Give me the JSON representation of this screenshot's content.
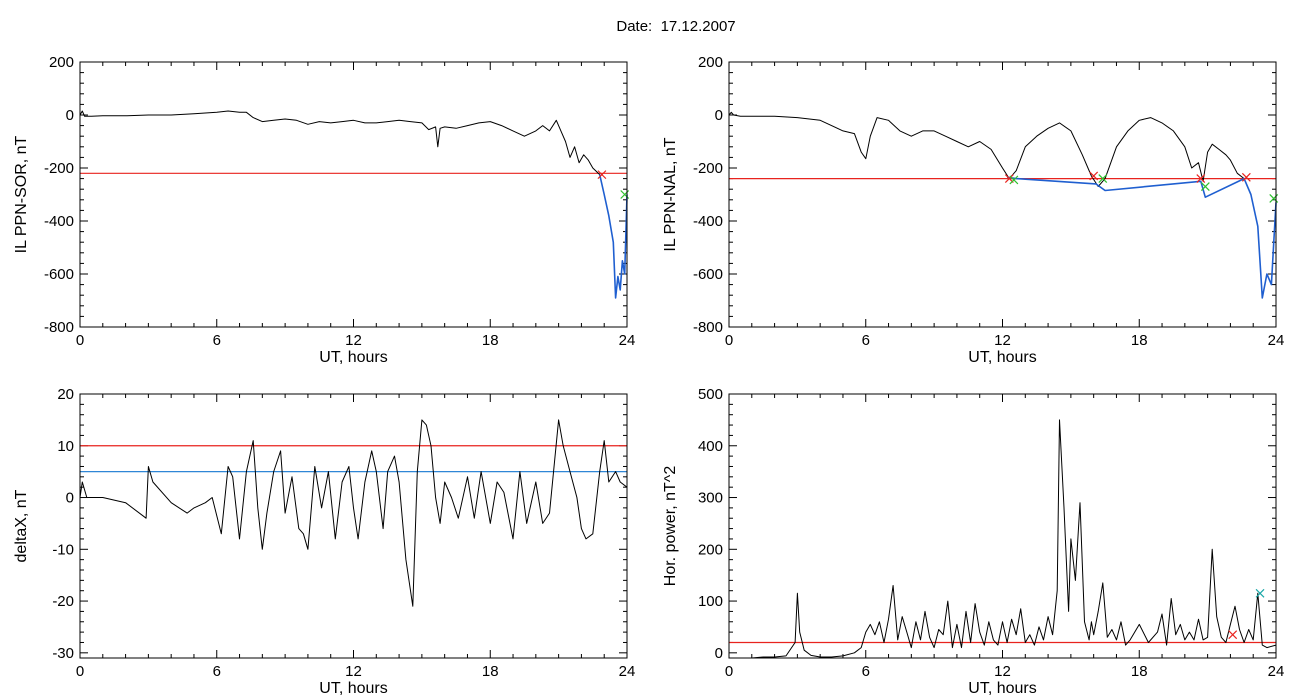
{
  "header": {
    "date_label": "Date:",
    "date_value": "17.12.2007"
  },
  "colors": {
    "trace": "#000000",
    "threshold_red": "#e8231e",
    "threshold_blue": "#2f86d6",
    "marker_red": "#e8231e",
    "marker_green": "#2fc12f",
    "marker_cyan": "#1aa7a7",
    "highlight_blue": "#1f5fd0"
  },
  "chart_data": [
    {
      "type": "line",
      "title": "",
      "xlabel": "UT, hours",
      "ylabel": "IL PPN-SOR, nT",
      "xlim": [
        0,
        24
      ],
      "ylim": [
        -800,
        200
      ],
      "xticks": [
        "0",
        "6",
        "12",
        "18",
        "24"
      ],
      "yticks": [
        "200",
        "0",
        "-200",
        "-400",
        "-600",
        "-800"
      ],
      "thresholds": [
        {
          "y": -220,
          "color": "red"
        }
      ],
      "series": [
        {
          "color": "black",
          "x": [
            0,
            0.1,
            0.2,
            0.5,
            1,
            2,
            3,
            4,
            5,
            6,
            6.5,
            7,
            7.3,
            7.6,
            8,
            8.5,
            9,
            9.5,
            10,
            10.5,
            11,
            11.5,
            12,
            12.5,
            13,
            13.5,
            14,
            14.5,
            15,
            15.3,
            15.6,
            15.7,
            15.8,
            16,
            16.5,
            17,
            17.5,
            18,
            18.5,
            19,
            19.5,
            20,
            20.3,
            20.6,
            20.9,
            21.1,
            21.3,
            21.5,
            21.7,
            21.9,
            22.1,
            22.3,
            22.5,
            22.8
          ],
          "y": [
            0,
            15,
            -5,
            -5,
            -3,
            -3,
            0,
            0,
            5,
            10,
            15,
            10,
            10,
            -10,
            -25,
            -20,
            -15,
            -20,
            -35,
            -25,
            -30,
            -25,
            -20,
            -30,
            -30,
            -25,
            -20,
            -25,
            -30,
            -55,
            -45,
            -120,
            -50,
            -45,
            -50,
            -40,
            -30,
            -25,
            -40,
            -60,
            -80,
            -60,
            -40,
            -60,
            -20,
            -60,
            -100,
            -160,
            -120,
            -180,
            -150,
            -170,
            -200,
            -225
          ]
        },
        {
          "color": "blue",
          "x": [
            22.8,
            23.0,
            23.2,
            23.4,
            23.5,
            23.6,
            23.7,
            23.8,
            23.9,
            24.0
          ],
          "y": [
            -225,
            -300,
            -380,
            -480,
            -690,
            -610,
            -660,
            -550,
            -600,
            -300
          ]
        }
      ],
      "markers": [
        {
          "x": 22.9,
          "y": -225,
          "color": "red"
        },
        {
          "x": 23.9,
          "y": -300,
          "color": "green"
        }
      ]
    },
    {
      "type": "line",
      "title": "",
      "xlabel": "UT, hours",
      "ylabel": "IL PPN-NAL, nT",
      "xlim": [
        0,
        24
      ],
      "ylim": [
        -800,
        200
      ],
      "xticks": [
        "0",
        "6",
        "12",
        "18",
        "24"
      ],
      "yticks": [
        "200",
        "0",
        "-200",
        "-400",
        "-600",
        "-800"
      ],
      "thresholds": [
        {
          "y": -240,
          "color": "red"
        }
      ],
      "series": [
        {
          "color": "black",
          "x": [
            0,
            0.1,
            0.2,
            0.5,
            1,
            2,
            3,
            4,
            5,
            5.5,
            5.8,
            6.0,
            6.2,
            6.5,
            7,
            7.5,
            8,
            8.5,
            9,
            9.5,
            10,
            10.5,
            11,
            11.5,
            12,
            12.3,
            12.6,
            13,
            13.5,
            14,
            14.5,
            15,
            15.5,
            15.9,
            16.2,
            16.5,
            17,
            17.5,
            18,
            18.5,
            19,
            19.5,
            20,
            20.3,
            20.6,
            20.8,
            21,
            21.2,
            21.5,
            21.8,
            22,
            22.3,
            22.6
          ],
          "y": [
            0,
            10,
            0,
            -5,
            -5,
            -5,
            -10,
            -20,
            -60,
            -70,
            -140,
            -165,
            -80,
            -10,
            -20,
            -60,
            -80,
            -60,
            -60,
            -80,
            -100,
            -120,
            -100,
            -130,
            -200,
            -240,
            -210,
            -120,
            -80,
            -50,
            -30,
            -60,
            -150,
            -230,
            -270,
            -240,
            -120,
            -60,
            -20,
            -10,
            -30,
            -60,
            -120,
            -200,
            -180,
            -250,
            -140,
            -110,
            -130,
            -150,
            -170,
            -220,
            -240
          ]
        },
        {
          "color": "blue",
          "x": [
            12.2,
            12.6,
            16.1,
            16.5,
            20.7,
            20.9,
            22.6,
            22.9,
            23.2,
            23.4,
            23.6,
            23.8,
            24.0
          ],
          "y": [
            -235,
            -240,
            -260,
            -285,
            -250,
            -310,
            -240,
            -300,
            -420,
            -690,
            -600,
            -640,
            -330
          ]
        }
      ],
      "markers": [
        {
          "x": 12.3,
          "y": -240,
          "color": "red"
        },
        {
          "x": 12.5,
          "y": -245,
          "color": "green"
        },
        {
          "x": 16.0,
          "y": -230,
          "color": "red"
        },
        {
          "x": 16.4,
          "y": -240,
          "color": "green"
        },
        {
          "x": 20.7,
          "y": -240,
          "color": "red"
        },
        {
          "x": 20.9,
          "y": -270,
          "color": "green"
        },
        {
          "x": 22.7,
          "y": -235,
          "color": "red"
        },
        {
          "x": 23.9,
          "y": -315,
          "color": "green"
        }
      ]
    },
    {
      "type": "line",
      "title": "",
      "xlabel": "UT, hours",
      "ylabel": "deltaX, nT",
      "xlim": [
        0,
        24
      ],
      "ylim": [
        -31,
        20
      ],
      "xticks": [
        "0",
        "6",
        "12",
        "18",
        "24"
      ],
      "yticks": [
        "20",
        "10",
        "0",
        "-10",
        "-20",
        "-30"
      ],
      "thresholds": [
        {
          "y": 10,
          "color": "red"
        },
        {
          "y": 5,
          "color": "blue"
        }
      ],
      "series": [
        {
          "color": "black",
          "x": [
            0,
            0.1,
            0.3,
            1,
            2,
            2.9,
            3.0,
            3.2,
            4,
            4.7,
            5,
            5.5,
            5.8,
            6.2,
            6.5,
            6.7,
            7.0,
            7.3,
            7.6,
            7.8,
            8.0,
            8.2,
            8.5,
            8.8,
            9.0,
            9.3,
            9.6,
            9.8,
            10.0,
            10.3,
            10.6,
            10.9,
            11.2,
            11.5,
            11.8,
            12.0,
            12.2,
            12.5,
            12.8,
            13.0,
            13.3,
            13.5,
            13.8,
            14.0,
            14.3,
            14.6,
            14.8,
            15.0,
            15.2,
            15.4,
            15.6,
            15.8,
            16.0,
            16.3,
            16.6,
            17.0,
            17.3,
            17.6,
            18.0,
            18.3,
            18.6,
            19.0,
            19.3,
            19.6,
            20.0,
            20.3,
            20.6,
            21.0,
            21.2,
            21.5,
            21.8,
            22.0,
            22.2,
            22.5,
            22.8,
            23.0,
            23.2,
            23.5,
            23.7,
            24.0
          ],
          "y": [
            0,
            3,
            0,
            0,
            -1,
            -4,
            6,
            3,
            -1,
            -3,
            -2,
            -1,
            0,
            -7,
            6,
            4,
            -8,
            5,
            11,
            -2,
            -10,
            -3,
            5,
            9,
            -3,
            4,
            -6,
            -7,
            -10,
            6,
            -2,
            5,
            -8,
            3,
            6,
            -2,
            -8,
            3,
            9,
            5,
            -6,
            5,
            8,
            3,
            -12,
            -21,
            5,
            15,
            14,
            10,
            0,
            -5,
            3,
            0,
            -4,
            4,
            -4,
            5,
            -5,
            3,
            1,
            -8,
            5,
            -5,
            3,
            -5,
            -3,
            15,
            10,
            5,
            0,
            -6,
            -8,
            -7,
            5,
            11,
            3,
            5,
            3,
            2
          ]
        }
      ],
      "markers": []
    },
    {
      "type": "line",
      "title": "",
      "xlabel": "UT, hours",
      "ylabel": "Hor. power, nT^2",
      "xlim": [
        0,
        24
      ],
      "ylim": [
        -10,
        500
      ],
      "xticks": [
        "0",
        "6",
        "12",
        "18",
        "24"
      ],
      "yticks": [
        "500",
        "400",
        "300",
        "200",
        "100",
        "0"
      ],
      "thresholds": [
        {
          "y": 20,
          "color": "red"
        }
      ],
      "series": [
        {
          "color": "black",
          "x": [
            0,
            0.5,
            1,
            1.5,
            2,
            2.5,
            2.9,
            3.0,
            3.1,
            3.3,
            3.6,
            4,
            4.5,
            5,
            5.5,
            5.8,
            6.0,
            6.2,
            6.4,
            6.6,
            6.8,
            7.0,
            7.2,
            7.4,
            7.6,
            7.8,
            8.0,
            8.2,
            8.4,
            8.6,
            8.8,
            9.0,
            9.2,
            9.4,
            9.6,
            9.8,
            10.0,
            10.2,
            10.4,
            10.6,
            10.8,
            11.0,
            11.2,
            11.4,
            11.6,
            11.8,
            12.0,
            12.2,
            12.4,
            12.6,
            12.8,
            13.0,
            13.2,
            13.4,
            13.6,
            13.8,
            14.0,
            14.2,
            14.4,
            14.5,
            14.7,
            14.9,
            15.0,
            15.2,
            15.4,
            15.6,
            15.8,
            15.9,
            16.0,
            16.2,
            16.4,
            16.6,
            16.8,
            17.0,
            17.2,
            17.4,
            17.6,
            18.0,
            18.4,
            18.8,
            19.0,
            19.2,
            19.4,
            19.6,
            19.8,
            20.0,
            20.2,
            20.4,
            20.6,
            20.8,
            21.0,
            21.2,
            21.4,
            21.6,
            21.8,
            22.0,
            22.2,
            22.4,
            22.6,
            22.8,
            23.0,
            23.2,
            23.4,
            23.6,
            24.0
          ],
          "y": [
            -10,
            -10,
            -10,
            -8,
            -8,
            -6,
            20,
            115,
            40,
            5,
            -5,
            -8,
            -8,
            -6,
            0,
            10,
            40,
            55,
            35,
            60,
            20,
            65,
            130,
            25,
            70,
            40,
            10,
            60,
            25,
            80,
            30,
            10,
            45,
            35,
            100,
            10,
            55,
            10,
            80,
            20,
            95,
            40,
            15,
            60,
            25,
            15,
            60,
            20,
            65,
            35,
            85,
            20,
            35,
            15,
            50,
            25,
            70,
            35,
            120,
            450,
            280,
            80,
            220,
            140,
            290,
            60,
            25,
            60,
            35,
            80,
            135,
            30,
            45,
            25,
            60,
            15,
            25,
            55,
            20,
            40,
            75,
            15,
            105,
            35,
            55,
            25,
            40,
            25,
            65,
            25,
            30,
            200,
            70,
            30,
            20,
            55,
            90,
            45,
            20,
            45,
            25,
            115,
            15,
            10,
            15
          ]
        }
      ],
      "markers": [
        {
          "x": 22.1,
          "y": 35,
          "color": "red"
        },
        {
          "x": 23.3,
          "y": 115,
          "color": "cyan"
        }
      ]
    }
  ]
}
